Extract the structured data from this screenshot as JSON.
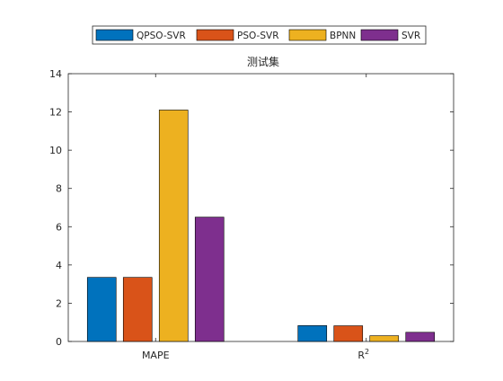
{
  "chart_data": {
    "type": "bar",
    "title": "测试集",
    "categories": [
      "MAPE",
      "R"
    ],
    "category_superscripts": [
      "",
      "2"
    ],
    "ylim": [
      0,
      14
    ],
    "yticks": [
      0,
      2,
      4,
      6,
      8,
      10,
      12,
      14
    ],
    "grid": false,
    "legend_position": "top",
    "series": [
      {
        "name": "QPSO-SVR",
        "color": "#0072BD",
        "values": [
          3.35,
          0.83
        ]
      },
      {
        "name": "PSO-SVR",
        "color": "#D95319",
        "values": [
          3.35,
          0.82
        ]
      },
      {
        "name": "BPNN",
        "color": "#EDB120",
        "values": [
          12.1,
          0.3
        ]
      },
      {
        "name": "SVR",
        "color": "#7E2F8E",
        "values": [
          6.5,
          0.48
        ]
      }
    ]
  }
}
